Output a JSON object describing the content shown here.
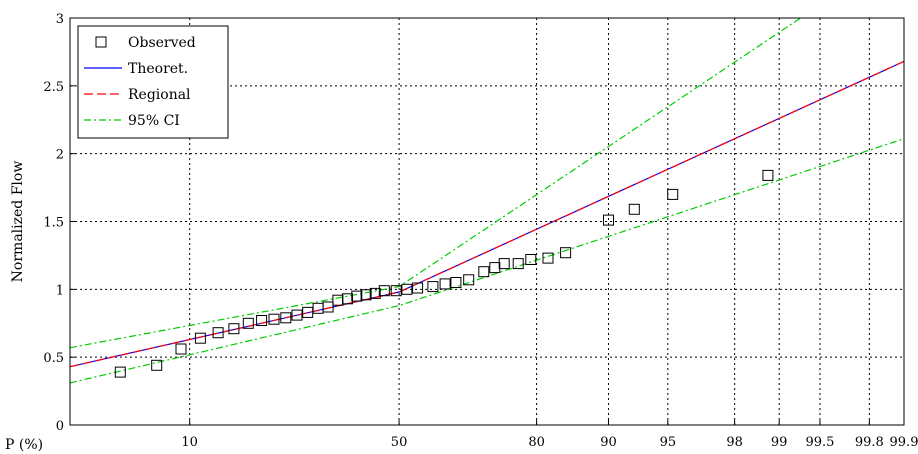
{
  "chart_data": {
    "type": "scatter",
    "title": "",
    "xlabel": "P (%)",
    "ylabel": "Normalized  Flow",
    "xscale": "normal-probability",
    "xticks": [
      "10",
      "50",
      "80",
      "90",
      "95",
      "98",
      "99",
      "99.5",
      "99.8",
      "99.9"
    ],
    "xtick_values": [
      10,
      50,
      80,
      90,
      95,
      98,
      99,
      99.5,
      99.8,
      99.9
    ],
    "xlim": [
      2.2,
      99.9
    ],
    "ylim": [
      0,
      3
    ],
    "yticks": [
      "0",
      "0.5",
      "1",
      "1.5",
      "2",
      "2.5",
      "3"
    ],
    "ytick_values": [
      0,
      0.5,
      1,
      1.5,
      2,
      2.5,
      3
    ],
    "grid": true,
    "grid_style": "dotted",
    "legend_position": "top-left",
    "series": [
      {
        "name": "Observed",
        "kind": "markers",
        "marker": "square",
        "color": "#000000",
        "points": [
          {
            "p": 4.4,
            "y": 0.39
          },
          {
            "p": 6.9,
            "y": 0.44
          },
          {
            "p": 9.1,
            "y": 0.56
          },
          {
            "p": 11.2,
            "y": 0.64
          },
          {
            "p": 13.4,
            "y": 0.68
          },
          {
            "p": 15.6,
            "y": 0.71
          },
          {
            "p": 17.8,
            "y": 0.75
          },
          {
            "p": 20.0,
            "y": 0.77
          },
          {
            "p": 22.2,
            "y": 0.78
          },
          {
            "p": 24.4,
            "y": 0.79
          },
          {
            "p": 26.6,
            "y": 0.81
          },
          {
            "p": 28.8,
            "y": 0.83
          },
          {
            "p": 31.0,
            "y": 0.86
          },
          {
            "p": 33.2,
            "y": 0.87
          },
          {
            "p": 35.4,
            "y": 0.92
          },
          {
            "p": 37.6,
            "y": 0.93
          },
          {
            "p": 39.8,
            "y": 0.95
          },
          {
            "p": 42.0,
            "y": 0.96
          },
          {
            "p": 44.2,
            "y": 0.97
          },
          {
            "p": 46.4,
            "y": 0.99
          },
          {
            "p": 49.3,
            "y": 0.99
          },
          {
            "p": 51.9,
            "y": 1.0
          },
          {
            "p": 54.5,
            "y": 1.01
          },
          {
            "p": 58.2,
            "y": 1.02
          },
          {
            "p": 61.1,
            "y": 1.04
          },
          {
            "p": 63.6,
            "y": 1.05
          },
          {
            "p": 66.5,
            "y": 1.07
          },
          {
            "p": 69.8,
            "y": 1.13
          },
          {
            "p": 72.1,
            "y": 1.16
          },
          {
            "p": 74.0,
            "y": 1.19
          },
          {
            "p": 76.7,
            "y": 1.19
          },
          {
            "p": 79.0,
            "y": 1.22
          },
          {
            "p": 81.9,
            "y": 1.23
          },
          {
            "p": 84.6,
            "y": 1.27
          },
          {
            "p": 90.0,
            "y": 1.51
          },
          {
            "p": 92.5,
            "y": 1.59
          },
          {
            "p": 95.3,
            "y": 1.7
          },
          {
            "p": 98.8,
            "y": 1.84
          }
        ]
      },
      {
        "name": "Theoret.",
        "kind": "line",
        "style": "solid",
        "color": "#0000ff",
        "points": [
          {
            "p": 2.2,
            "y": 0.43
          },
          {
            "p": 50,
            "y": 0.98
          },
          {
            "p": 99.9,
            "y": 2.68
          }
        ]
      },
      {
        "name": "Regional",
        "kind": "line",
        "style": "dashed",
        "color": "#ff0000",
        "points": [
          {
            "p": 2.2,
            "y": 0.43
          },
          {
            "p": 50,
            "y": 0.98
          },
          {
            "p": 99.9,
            "y": 2.68
          }
        ]
      },
      {
        "name": "95% CI",
        "kind": "line",
        "style": "dash-dot",
        "color": "#00cc00",
        "points": [
          {
            "p": 2.2,
            "y": 0.57
          },
          {
            "p": 50,
            "y": 1.02
          },
          {
            "p": 99.3,
            "y": 3.0
          }
        ]
      },
      {
        "name": "95% CI",
        "kind": "line",
        "style": "dash-dot",
        "color": "#00cc00",
        "show_in_legend": false,
        "points": [
          {
            "p": 2.2,
            "y": 0.31
          },
          {
            "p": 50,
            "y": 0.88
          },
          {
            "p": 99.9,
            "y": 2.11
          }
        ]
      }
    ]
  }
}
